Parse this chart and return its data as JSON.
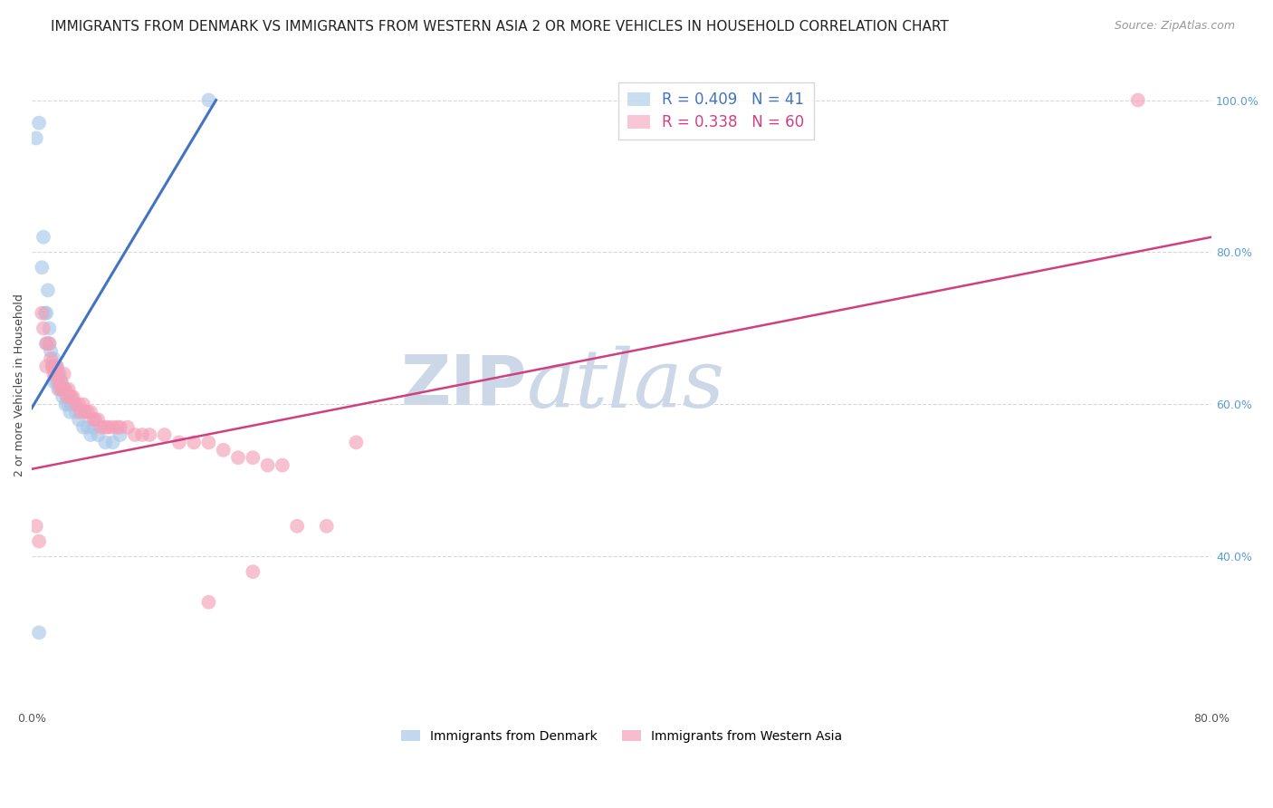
{
  "title": "IMMIGRANTS FROM DENMARK VS IMMIGRANTS FROM WESTERN ASIA 2 OR MORE VEHICLES IN HOUSEHOLD CORRELATION CHART",
  "source": "Source: ZipAtlas.com",
  "ylabel": "2 or more Vehicles in Household",
  "xlim": [
    0.0,
    0.8
  ],
  "ylim": [
    0.2,
    1.05
  ],
  "x_ticks": [
    0.0,
    0.1,
    0.2,
    0.3,
    0.4,
    0.5,
    0.6,
    0.7,
    0.8
  ],
  "x_tick_labels": [
    "0.0%",
    "",
    "",
    "",
    "",
    "",
    "",
    "",
    "80.0%"
  ],
  "y_ticks_right": [
    0.4,
    0.6,
    0.8,
    1.0
  ],
  "y_tick_labels_right": [
    "40.0%",
    "60.0%",
    "80.0%",
    "100.0%"
  ],
  "legend_R1": "0.409",
  "legend_N1": "41",
  "legend_R2": "0.338",
  "legend_N2": "60",
  "color_blue": "#a8c8e8",
  "color_pink": "#f4a0b8",
  "color_blue_line": "#4472c4",
  "color_pink_line": "#d04080",
  "legend_label1": "Immigrants from Denmark",
  "legend_label2": "Immigrants from Western Asia",
  "watermark_zip": "ZIP",
  "watermark_atlas": "atlas",
  "blue_scatter_x": [
    0.003,
    0.005,
    0.007,
    0.008,
    0.009,
    0.01,
    0.01,
    0.011,
    0.012,
    0.012,
    0.013,
    0.014,
    0.015,
    0.015,
    0.016,
    0.017,
    0.017,
    0.018,
    0.019,
    0.02,
    0.02,
    0.021,
    0.022,
    0.023,
    0.024,
    0.025,
    0.026,
    0.027,
    0.028,
    0.03,
    0.032,
    0.035,
    0.038,
    0.04,
    0.042,
    0.045,
    0.05,
    0.055,
    0.06,
    0.005,
    0.12
  ],
  "blue_scatter_y": [
    0.95,
    0.97,
    0.78,
    0.82,
    0.72,
    0.68,
    0.72,
    0.75,
    0.7,
    0.68,
    0.67,
    0.65,
    0.63,
    0.66,
    0.65,
    0.63,
    0.65,
    0.62,
    0.64,
    0.62,
    0.63,
    0.61,
    0.62,
    0.6,
    0.61,
    0.6,
    0.59,
    0.6,
    0.6,
    0.59,
    0.58,
    0.57,
    0.57,
    0.56,
    0.57,
    0.56,
    0.55,
    0.55,
    0.56,
    0.3,
    1.0
  ],
  "pink_scatter_x": [
    0.003,
    0.005,
    0.007,
    0.008,
    0.01,
    0.01,
    0.012,
    0.013,
    0.014,
    0.015,
    0.015,
    0.016,
    0.017,
    0.018,
    0.018,
    0.019,
    0.02,
    0.021,
    0.022,
    0.023,
    0.024,
    0.025,
    0.026,
    0.027,
    0.028,
    0.03,
    0.032,
    0.033,
    0.035,
    0.036,
    0.038,
    0.04,
    0.042,
    0.043,
    0.045,
    0.047,
    0.05,
    0.052,
    0.055,
    0.058,
    0.06,
    0.065,
    0.07,
    0.075,
    0.08,
    0.09,
    0.1,
    0.11,
    0.12,
    0.13,
    0.14,
    0.15,
    0.16,
    0.17,
    0.15,
    0.18,
    0.2,
    0.12,
    0.22,
    0.75
  ],
  "pink_scatter_y": [
    0.44,
    0.42,
    0.72,
    0.7,
    0.68,
    0.65,
    0.68,
    0.66,
    0.65,
    0.64,
    0.65,
    0.64,
    0.65,
    0.63,
    0.64,
    0.62,
    0.63,
    0.62,
    0.64,
    0.62,
    0.61,
    0.62,
    0.61,
    0.61,
    0.61,
    0.6,
    0.6,
    0.59,
    0.6,
    0.59,
    0.59,
    0.59,
    0.58,
    0.58,
    0.58,
    0.57,
    0.57,
    0.57,
    0.57,
    0.57,
    0.57,
    0.57,
    0.56,
    0.56,
    0.56,
    0.56,
    0.55,
    0.55,
    0.55,
    0.54,
    0.53,
    0.53,
    0.52,
    0.52,
    0.38,
    0.44,
    0.44,
    0.34,
    0.55,
    1.0
  ],
  "blue_line_x": [
    0.0,
    0.125
  ],
  "blue_line_y": [
    0.595,
    1.0
  ],
  "pink_line_x": [
    0.0,
    0.8
  ],
  "pink_line_y": [
    0.515,
    0.82
  ],
  "grid_color": "#d8d8d8",
  "title_fontsize": 11,
  "source_fontsize": 9,
  "axis_label_fontsize": 9,
  "tick_fontsize": 9,
  "legend_fontsize": 12,
  "watermark_color": "#ccd8e8",
  "watermark_fontsize_zip": 55,
  "watermark_fontsize_atlas": 65
}
